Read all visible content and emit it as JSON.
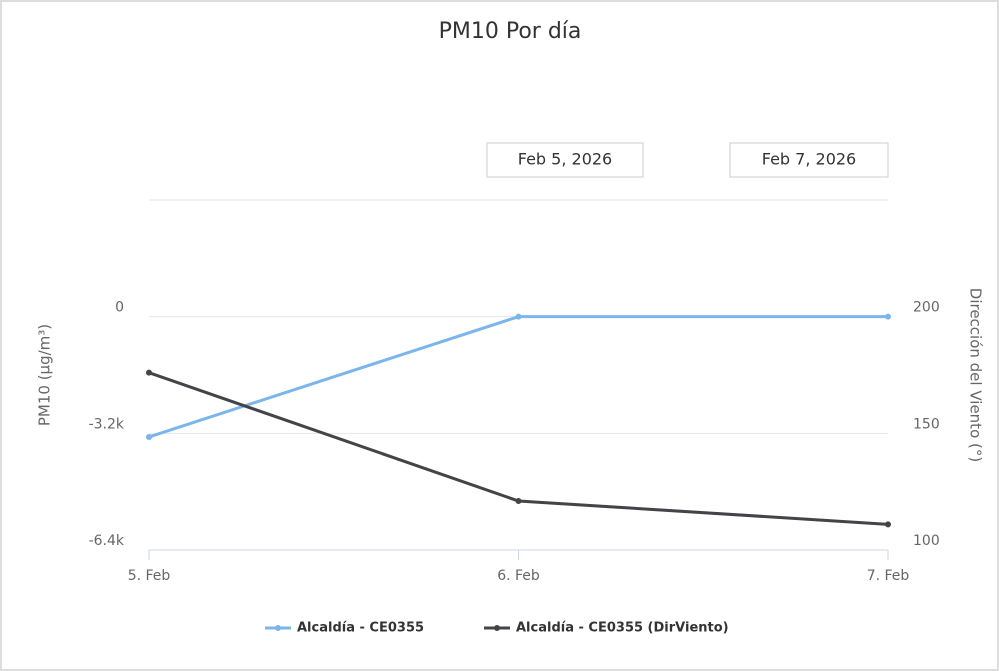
{
  "chart_data": {
    "type": "line",
    "title": "PM10 Por día",
    "range_labels": [
      "Feb 5, 2026",
      "Feb 7, 2026"
    ],
    "categories": [
      "5. Feb",
      "6. Feb",
      "7. Feb"
    ],
    "ylabel": "PM10 (µg/m³)",
    "y2label": "Dirección del Viento (°)",
    "ylim": [
      -6400,
      3200
    ],
    "yticks": [
      {
        "value": -6400,
        "label": "-6.4k"
      },
      {
        "value": -3200,
        "label": "-3.2k"
      },
      0
    ],
    "y2lim": [
      100,
      250
    ],
    "y2ticks": [
      100,
      150,
      200
    ],
    "grid": true,
    "legend": "bottom",
    "series": [
      {
        "name": "Alcaldía - CE0355",
        "color": "#7cb5ec",
        "values": [
          -3300,
          0,
          0
        ]
      },
      {
        "name": "Alcaldía - CE0355 (DirViento)",
        "color": "#434348",
        "axis": "y2",
        "values": [
          176,
          121,
          111
        ]
      }
    ]
  }
}
